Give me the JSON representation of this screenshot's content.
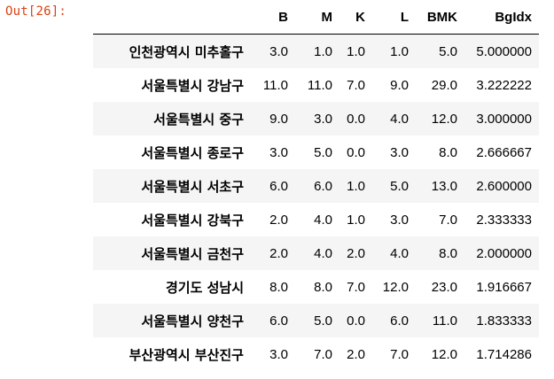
{
  "prompt": "Out[26]:",
  "table": {
    "columns": [
      "B",
      "M",
      "K",
      "L",
      "BMK",
      "BgIdx"
    ],
    "rows": [
      {
        "index": "인천광역시 미추홀구",
        "B": "3.0",
        "M": "1.0",
        "K": "1.0",
        "L": "1.0",
        "BMK": "5.0",
        "BgIdx": "5.000000"
      },
      {
        "index": "서울특별시 강남구",
        "B": "11.0",
        "M": "11.0",
        "K": "7.0",
        "L": "9.0",
        "BMK": "29.0",
        "BgIdx": "3.222222"
      },
      {
        "index": "서울특별시 중구",
        "B": "9.0",
        "M": "3.0",
        "K": "0.0",
        "L": "4.0",
        "BMK": "12.0",
        "BgIdx": "3.000000"
      },
      {
        "index": "서울특별시 종로구",
        "B": "3.0",
        "M": "5.0",
        "K": "0.0",
        "L": "3.0",
        "BMK": "8.0",
        "BgIdx": "2.666667"
      },
      {
        "index": "서울특별시 서초구",
        "B": "6.0",
        "M": "6.0",
        "K": "1.0",
        "L": "5.0",
        "BMK": "13.0",
        "BgIdx": "2.600000"
      },
      {
        "index": "서울특별시 강북구",
        "B": "2.0",
        "M": "4.0",
        "K": "1.0",
        "L": "3.0",
        "BMK": "7.0",
        "BgIdx": "2.333333"
      },
      {
        "index": "서울특별시 금천구",
        "B": "2.0",
        "M": "4.0",
        "K": "2.0",
        "L": "4.0",
        "BMK": "8.0",
        "BgIdx": "2.000000"
      },
      {
        "index": "경기도 성남시",
        "B": "8.0",
        "M": "8.0",
        "K": "7.0",
        "L": "12.0",
        "BMK": "23.0",
        "BgIdx": "1.916667"
      },
      {
        "index": "서울특별시 양천구",
        "B": "6.0",
        "M": "5.0",
        "K": "0.0",
        "L": "6.0",
        "BMK": "11.0",
        "BgIdx": "1.833333"
      },
      {
        "index": "부산광역시 부산진구",
        "B": "3.0",
        "M": "7.0",
        "K": "2.0",
        "L": "7.0",
        "BMK": "12.0",
        "BgIdx": "1.714286"
      }
    ]
  },
  "colors": {
    "prompt": "#d84315",
    "stripe": "#f5f5f5",
    "text": "#000000"
  }
}
